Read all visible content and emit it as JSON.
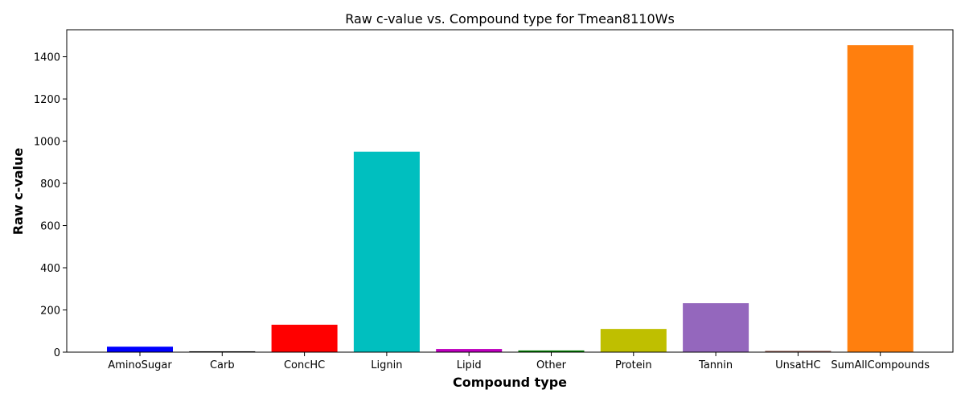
{
  "chart_data": {
    "type": "bar",
    "title": "Raw c-value vs. Compound type for Tmean8110Ws",
    "xlabel": "Compound type",
    "ylabel": "Raw c-value",
    "categories": [
      "AminoSugar",
      "Carb",
      "ConcHC",
      "Lignin",
      "Lipid",
      "Other",
      "Protein",
      "Tannin",
      "UnsatHC",
      "SumAllCompounds"
    ],
    "values": [
      26,
      4,
      130,
      950,
      15,
      8,
      110,
      232,
      6,
      1455
    ],
    "colors": [
      "#0000ff",
      "#000000",
      "#ff0000",
      "#00bfbf",
      "#bf00bf",
      "#008000",
      "#bfbf00",
      "#9467bd",
      "#8c564b",
      "#ff7f0e"
    ],
    "ylim": [
      0,
      1528
    ],
    "yticks": [
      0,
      200,
      400,
      600,
      800,
      1000,
      1200,
      1400
    ],
    "grid": false,
    "legend": "none"
  }
}
